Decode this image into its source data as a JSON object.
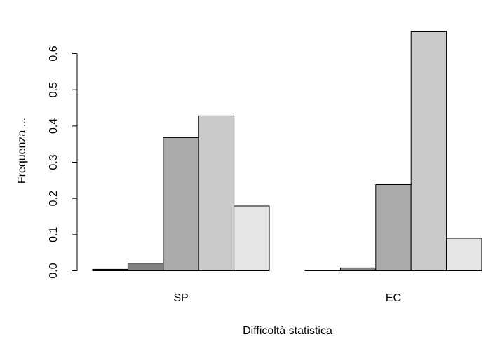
{
  "chart_data": {
    "type": "bar",
    "layout": "grouped",
    "categories": [
      "SP",
      "EC"
    ],
    "series": [
      {
        "values": [
          0.004,
          0.002
        ],
        "color": "#333333"
      },
      {
        "values": [
          0.021,
          0.008
        ],
        "color": "#808080"
      },
      {
        "values": [
          0.368,
          0.238
        ],
        "color": "#ababab"
      },
      {
        "values": [
          0.428,
          0.662
        ],
        "color": "#cacaca"
      },
      {
        "values": [
          0.179,
          0.09
        ],
        "color": "#e6e6e6"
      }
    ],
    "title": "",
    "xlabel": "Difficoltà statistica",
    "ylabel": "Frequenza ...",
    "ylim": [
      0,
      0.662
    ],
    "yticks": [
      0.0,
      0.1,
      0.2,
      0.3,
      0.4,
      0.5,
      0.6
    ],
    "ytick_labels": [
      "0.0",
      "0.1",
      "0.2",
      "0.3",
      "0.4",
      "0.5",
      "0.6"
    ],
    "grid": false,
    "legend": "none"
  }
}
